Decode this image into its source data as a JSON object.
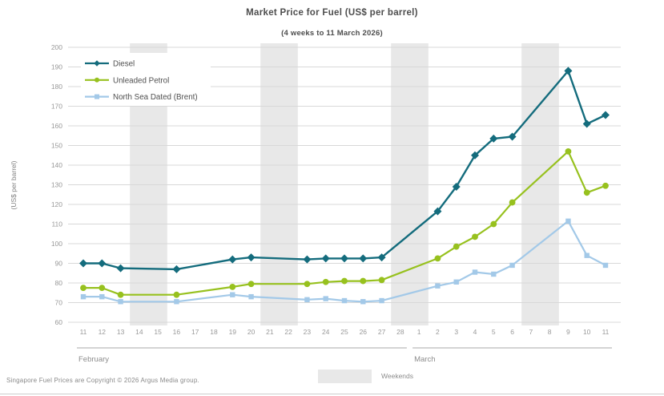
{
  "header": {
    "title": "Market Price for Fuel (US$ per barrel)",
    "subtitle": "(4 weeks to 11 March 2026)"
  },
  "chart_data": {
    "type": "line",
    "title": "Market Price for Fuel (US$ per barrel)",
    "subtitle": "(4 weeks to 11 March 2026)",
    "ylabel": "(US$ per barrel)",
    "ylim": [
      60,
      200
    ],
    "ytick_step": 10,
    "grid": "horizontal",
    "legend_position": "top-left",
    "colors": {
      "gridline": "#d8d8d8",
      "weekend_band": "#e8e8e8",
      "tick_text": "#999999",
      "month_text": "#8c8c8c",
      "month_line": "#aaaaaa",
      "legend_text": "#4f4f4f"
    },
    "day_labels": [
      "11",
      "12",
      "13",
      "14",
      "15",
      "16",
      "17",
      "18",
      "19",
      "20",
      "21",
      "22",
      "23",
      "24",
      "25",
      "26",
      "27",
      "28",
      "1",
      "2",
      "3",
      "4",
      "5",
      "6",
      "7",
      "8",
      "9",
      "10",
      "11"
    ],
    "months": [
      {
        "label": "February",
        "start_index": 0,
        "end_index": 17
      },
      {
        "label": "March",
        "start_index": 18,
        "end_index": 28
      }
    ],
    "weekend_bands": [
      [
        3,
        4
      ],
      [
        10,
        11
      ],
      [
        17,
        18
      ],
      [
        24,
        25
      ]
    ],
    "data_day_indices": [
      0,
      1,
      2,
      5,
      8,
      9,
      12,
      13,
      14,
      15,
      16,
      19,
      20,
      21,
      22,
      23,
      26,
      27,
      28
    ],
    "data_dates": [
      "11 Feb",
      "12 Feb",
      "13 Feb",
      "16 Feb",
      "19 Feb",
      "20 Feb",
      "23 Feb",
      "24 Feb",
      "25 Feb",
      "26 Feb",
      "27 Feb",
      "2 Mar",
      "3 Mar",
      "4 Mar",
      "5 Mar",
      "6 Mar",
      "9 Mar",
      "10 Mar",
      "11 Mar"
    ],
    "series": [
      {
        "name": "Diesel",
        "color": "#146c7d",
        "marker": "diamond",
        "values": [
          90,
          90,
          87.5,
          87,
          92,
          93,
          92,
          92.5,
          92.5,
          92.5,
          93,
          116.5,
          129,
          145,
          153.5,
          154.5,
          188,
          161,
          165.5
        ]
      },
      {
        "name": "Unleaded Petrol",
        "color": "#97c11e",
        "marker": "circle",
        "values": [
          77.5,
          77.5,
          74,
          74,
          78,
          79.5,
          79.5,
          80.5,
          81,
          81,
          81.5,
          92.5,
          98.5,
          103.5,
          110,
          121,
          147,
          126,
          129.5
        ]
      },
      {
        "name": "North Sea Dated (Brent)",
        "color": "#a3c9e8",
        "marker": "square",
        "values": [
          73,
          73,
          70.5,
          70.5,
          74,
          73,
          71.5,
          72,
          71,
          70.5,
          71,
          78.5,
          80.5,
          85.5,
          84.5,
          89,
          111.5,
          94,
          89
        ]
      }
    ]
  },
  "weekend_legend": {
    "label": "Weekends",
    "color": "#e8e8e8"
  },
  "footer": {
    "source": "Singapore Fuel Prices are Copyright © 2026 Argus Media group."
  }
}
